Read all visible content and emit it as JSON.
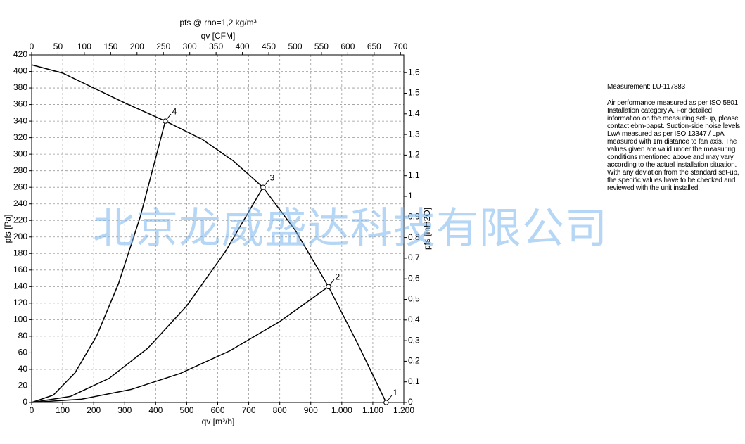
{
  "chart_data": {
    "type": "line",
    "title": "pfs @ rho=1,2 kg/m³",
    "xlabel": "qv [m³/h]",
    "ylabel": "pfs [Pa]",
    "x2label": "qv [CFM]",
    "y2label": "pfs [inH2O]",
    "xlim": [
      0,
      1200
    ],
    "xticks": [
      0,
      100,
      200,
      300,
      400,
      500,
      600,
      700,
      800,
      900,
      {
        "value": 1000,
        "label": "1.000"
      },
      {
        "value": 1100,
        "label": "1.100"
      },
      {
        "value": 1200,
        "label": "1.200"
      }
    ],
    "ylim": [
      0,
      420
    ],
    "yticks": [
      0,
      20,
      40,
      60,
      80,
      100,
      120,
      140,
      160,
      180,
      200,
      220,
      240,
      260,
      280,
      300,
      320,
      340,
      360,
      380,
      400,
      420
    ],
    "x2lim": [
      0,
      706.3
    ],
    "x2ticks": [
      0,
      50,
      100,
      150,
      200,
      250,
      300,
      350,
      400,
      450,
      500,
      550,
      600,
      650,
      700
    ],
    "y2lim": [
      0,
      1.686
    ],
    "y2ticks": [
      0,
      {
        "value": 0.1,
        "label": "0,1"
      },
      {
        "value": 0.2,
        "label": "0,2"
      },
      {
        "value": 0.3,
        "label": "0,3"
      },
      {
        "value": 0.4,
        "label": "0,4"
      },
      {
        "value": 0.5,
        "label": "0,5"
      },
      {
        "value": 0.6,
        "label": "0,6"
      },
      {
        "value": 0.7,
        "label": "0,7"
      },
      {
        "value": 0.8,
        "label": "0,8"
      },
      {
        "value": 0.9,
        "label": "0,9"
      },
      1,
      {
        "value": 1.1,
        "label": "1,1"
      },
      {
        "value": 1.2,
        "label": "1,2"
      },
      {
        "value": 1.3,
        "label": "1,3"
      },
      {
        "value": 1.4,
        "label": "1,4"
      },
      {
        "value": 1.5,
        "label": "1,5"
      },
      {
        "value": 1.6,
        "label": "1,6"
      }
    ],
    "grid": true,
    "series": [
      {
        "color": "#000000",
        "x": [
          0,
          100,
          200,
          300,
          431,
          550,
          650,
          746,
          850,
          957,
          1050,
          1143
        ],
        "values": [
          408,
          398,
          380,
          362,
          340,
          318,
          292,
          260,
          208,
          140,
          72,
          0
        ]
      },
      {
        "color": "#000000",
        "x": [
          0,
          70,
          140,
          210,
          280,
          350,
          431
        ],
        "values": [
          0,
          9.0,
          35.9,
          80.7,
          143.5,
          224.2,
          340
        ]
      },
      {
        "color": "#000000",
        "x": [
          0,
          125,
          250,
          375,
          500,
          625,
          746
        ],
        "values": [
          0,
          7.3,
          29.2,
          65.7,
          116.8,
          182.5,
          260
        ]
      },
      {
        "color": "#000000",
        "x": [
          0,
          160,
          320,
          480,
          640,
          800,
          957
        ],
        "values": [
          0,
          3.9,
          15.7,
          35.2,
          62.6,
          97.8,
          140
        ]
      }
    ],
    "points": [
      {
        "label": "1",
        "x": 1143,
        "y": 0
      },
      {
        "label": "2",
        "x": 957,
        "y": 140
      },
      {
        "label": "3",
        "x": 746,
        "y": 260
      },
      {
        "label": "4",
        "x": 431,
        "y": 340
      }
    ]
  },
  "notes": {
    "measurement": "Measurement: LU-117883",
    "description": "Air performance measured as per ISO 5801 Installation category A. For detailed information on the measuring set-up, please contact ebm-papst. Suction-side noise levels: LwA measured as per ISO 13347 / LpA measured with 1m distance to fan axis. The values given are valid under the measuring conditions mentioned above and may vary according to the actual installation situation. With any deviation from the standard set-up, the specific values have to be checked and reviewed with the unit installed."
  },
  "watermark": "北京龙威盛达科技有限公司"
}
